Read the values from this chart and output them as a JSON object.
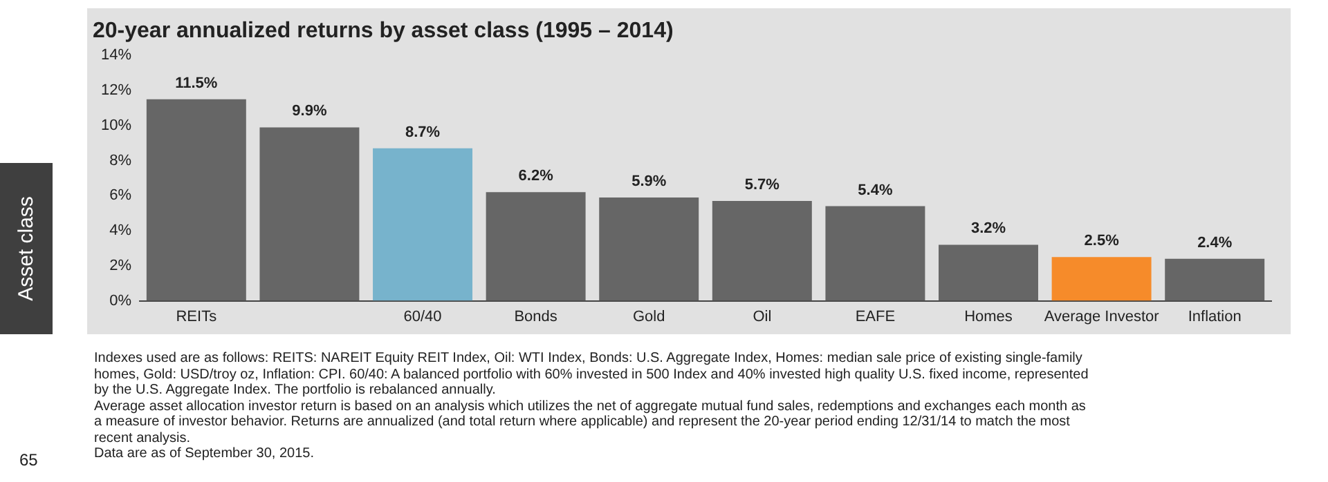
{
  "chart_data": {
    "type": "bar",
    "title": "20-year annualized returns by asset class (1995 – 2014)",
    "categories": [
      "REITs",
      null,
      "60/40",
      "Bonds",
      "Gold",
      "Oil",
      "EAFE",
      "Homes",
      "Average Investor",
      "Inflation"
    ],
    "values": [
      11.5,
      9.9,
      8.7,
      6.2,
      5.9,
      5.7,
      5.4,
      3.2,
      2.5,
      2.4
    ],
    "colors": [
      "#666666",
      "#666666",
      "#77b3cc",
      "#666666",
      "#666666",
      "#666666",
      "#666666",
      "#666666",
      "#f68b2a",
      "#666666"
    ],
    "value_labels": [
      "11.5%",
      "9.9%",
      "8.7%",
      "6.2%",
      "5.9%",
      "5.7%",
      "5.4%",
      "3.2%",
      "2.5%",
      "2.4%"
    ],
    "ylim": [
      0,
      14
    ],
    "yticks": [
      {
        "value": 0,
        "label": "0%"
      },
      {
        "value": 2,
        "label": "2%"
      },
      {
        "value": 4,
        "label": "4%"
      },
      {
        "value": 6,
        "label": "6%"
      },
      {
        "value": 8,
        "label": "8%"
      },
      {
        "value": 10,
        "label": "10%"
      },
      {
        "value": 12,
        "label": "12%"
      },
      {
        "value": 14,
        "label": "14%"
      }
    ],
    "grid": false,
    "legend": false,
    "annotations": [
      "Asset class",
      "65",
      "Indexes used are as follows: REITS: NAREIT Equity REIT Index, Oil: WTI Index, Bonds: U.S. Aggregate Index, Homes: median sale price of existing single-family homes, Gold: USD/troy oz, Inflation: CPI. 60/40: A balanced portfolio with 60% invested in 500 Index and 40% invested high quality U.S. fixed income, represented by the U.S. Aggregate Index. The portfolio is rebalanced annually.",
      "Average asset allocation investor return is based on an analysis which utilizes the net of aggregate mutual fund sales, redemptions and exchanges each month as a measure of investor behavior. Returns are annualized (and total return where applicable) and represent the 20-year period ending 12/31/14 to match the most recent analysis.",
      "Data are as of September 30, 2015."
    ]
  }
}
